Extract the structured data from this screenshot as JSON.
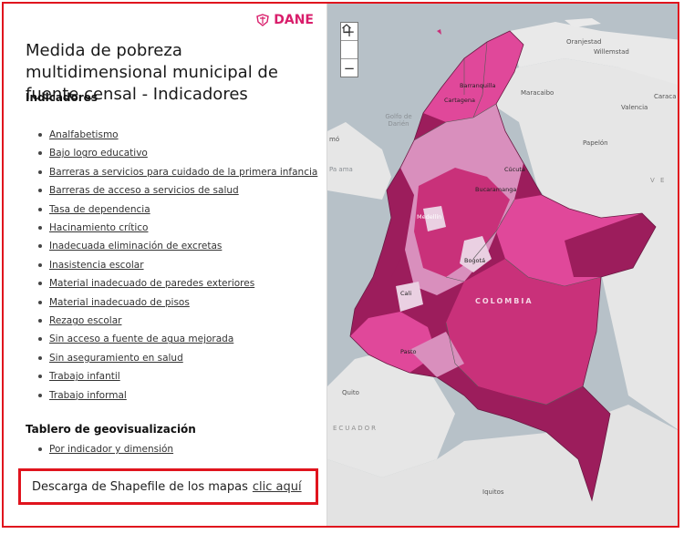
{
  "logo": {
    "text": "DANE"
  },
  "header": {
    "title": "Medida de pobreza multidimensional municipal de fuente censal - Indicadores"
  },
  "indicators": {
    "heading": "Indicadores",
    "items": [
      "Analfabetismo",
      "Bajo logro educativo",
      "Barreras a servicios para cuidado de la primera infancia",
      "Barreras de acceso a servicios de salud",
      "Tasa de dependencia",
      "Hacinamiento crítico",
      "Inadecuada eliminación de excretas",
      "Inasistencia escolar",
      "Material inadecuado de paredes exteriores",
      "Material inadecuado de pisos",
      "Rezago escolar",
      "Sin acceso a fuente de agua mejorada",
      "Sin aseguramiento en salud",
      "Trabajo infantil",
      "Trabajo informal"
    ]
  },
  "dashboard": {
    "heading": "Tablero de geovisualización",
    "items": [
      "Por indicador y dimensión"
    ]
  },
  "download": {
    "text": "Descarga de Shapefile de los mapas",
    "link": "clic aquí"
  },
  "map": {
    "zoom_in": "+",
    "zoom_out": "−",
    "labels": {
      "oranjestad": "Oranjestad",
      "willemstad": "Willemstad",
      "barranquilla": "Barranquilla",
      "cartagena": "Cartagena",
      "maracaibo": "Maracaibo",
      "caracas": "Caraca",
      "valencia": "Valencia",
      "golfo": "Golfo de Darién",
      "panama": "mó",
      "panama2": "Pa ama",
      "cucuta": "Cúcuta",
      "papelon": "Papelón",
      "bucaramanga": "Bucaramanga",
      "venezuela": "V E",
      "medellin": "Medellín",
      "bogota": "Bogotá",
      "colombia": "COLOMBIA",
      "cali": "Cali",
      "pasto": "Pasto",
      "quito": "Quito",
      "ecuador": "ECUADOR",
      "iquitos": "Iquitos"
    },
    "colors": {
      "dark": "#9c1d5c",
      "mid": "#c9317a",
      "bright": "#e0489a",
      "light": "#d98fbd",
      "pale": "#ead0e2"
    }
  }
}
